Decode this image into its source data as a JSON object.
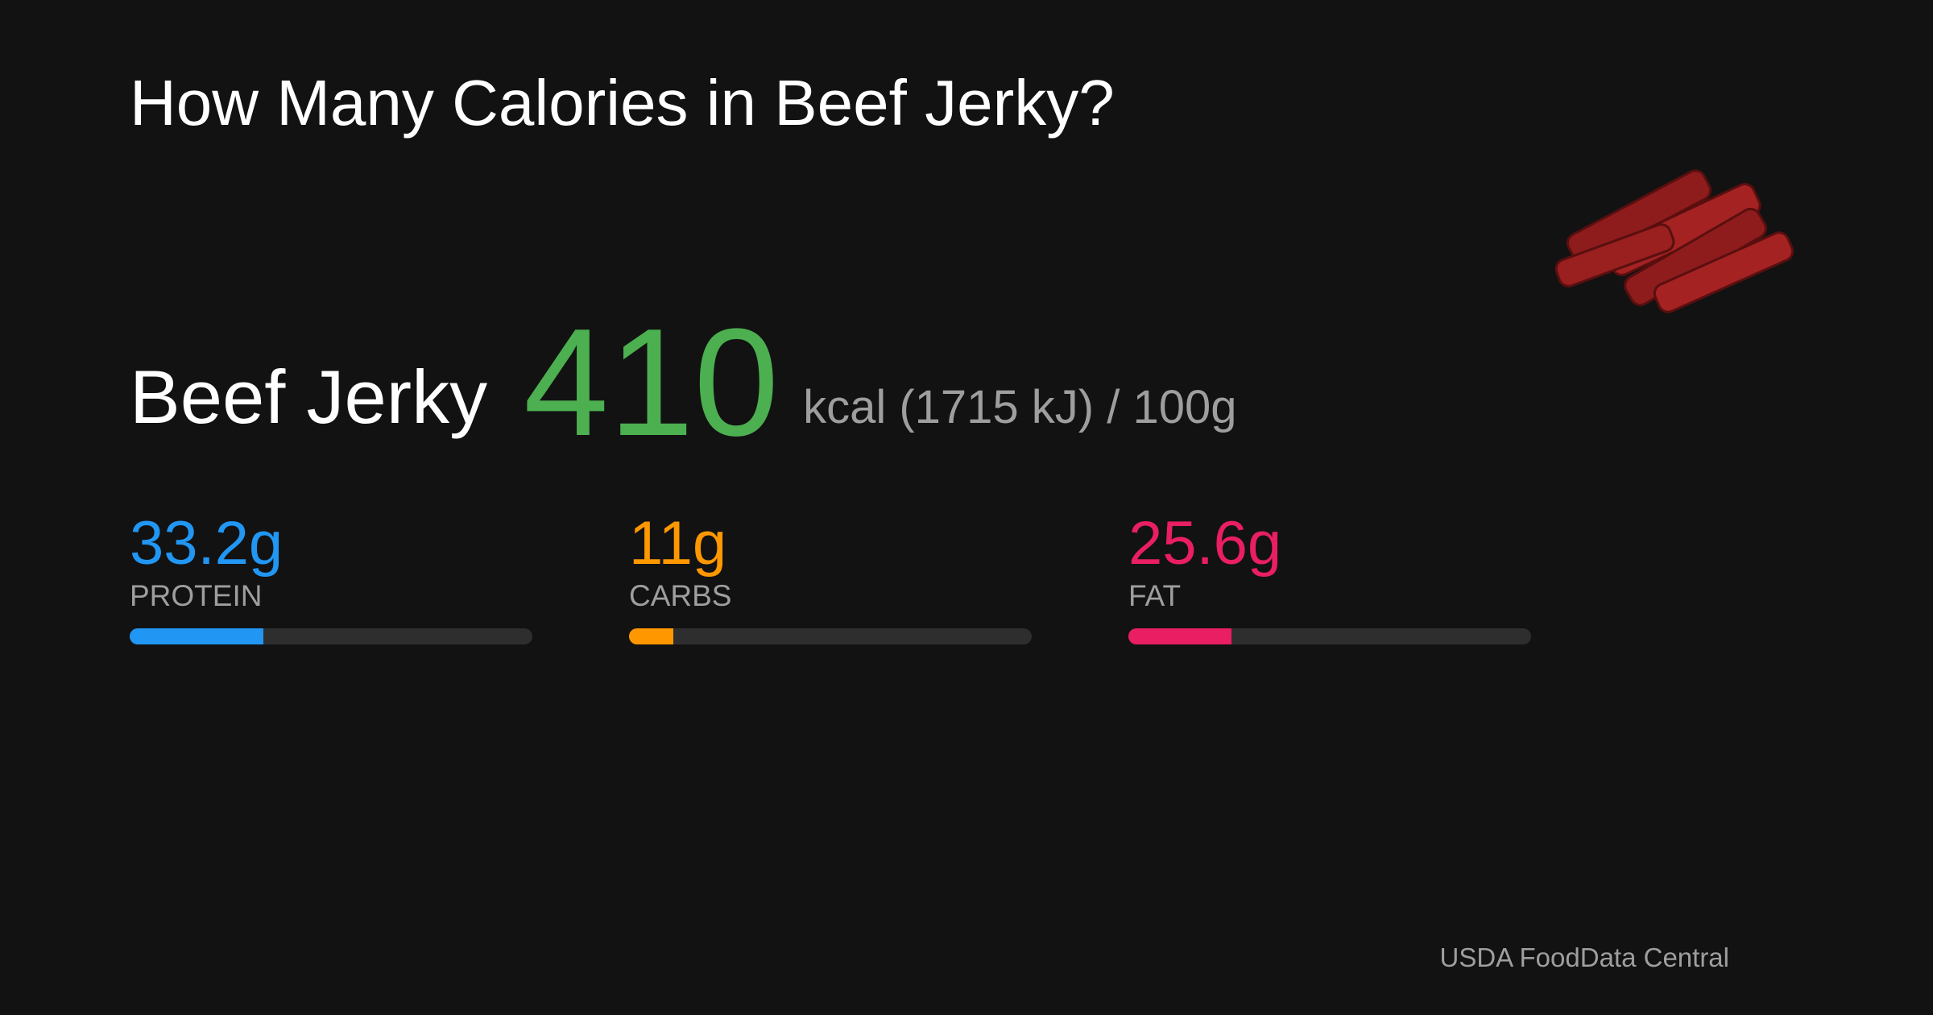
{
  "header": {
    "title": "How Many Calories in Beef Jerky?"
  },
  "food": {
    "name": "Beef Jerky",
    "calories": 410,
    "calories_color": "#4caf50",
    "unit_text": "kcal (1715 kJ) / 100g"
  },
  "chart_data": {
    "type": "progress",
    "categories": [
      "PROTEIN",
      "CARBS",
      "FAT"
    ],
    "values": [
      33.2,
      11,
      25.6
    ],
    "value_labels": [
      "33.2g",
      "11g",
      "25.6g"
    ],
    "colors": [
      "#2196f3",
      "#ff9800",
      "#e91e63"
    ],
    "xlim": [
      0,
      100
    ]
  },
  "footer": {
    "source": "USDA FoodData Central"
  }
}
